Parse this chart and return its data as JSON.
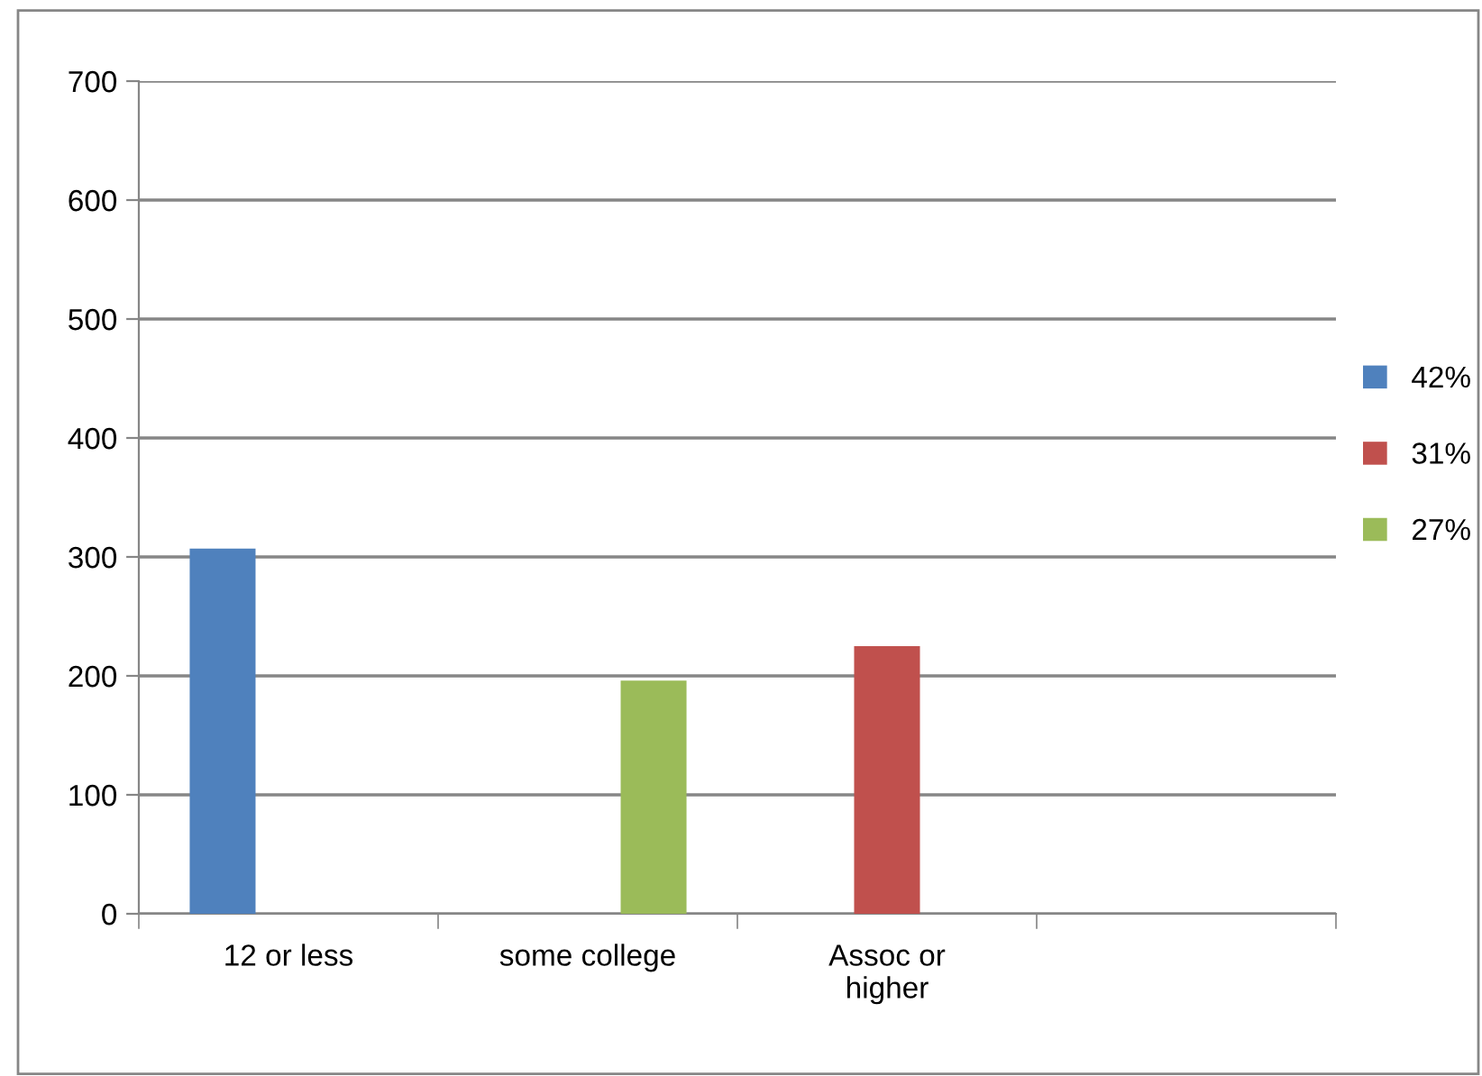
{
  "chart_data": {
    "type": "bar",
    "categories": [
      "12 or less",
      "some college",
      "Assoc or\nhigher",
      null
    ],
    "series": [
      {
        "name": "42%",
        "color": "#4f81bd",
        "values": [
          307,
          null,
          null,
          null
        ]
      },
      {
        "name": "31%",
        "color": "#c0504d",
        "values": [
          null,
          null,
          225,
          null
        ]
      },
      {
        "name": "27%",
        "color": "#9bbb59",
        "values": [
          null,
          196,
          null,
          null
        ]
      }
    ],
    "ylim": [
      0,
      700
    ],
    "yticks": [
      0,
      100,
      200,
      300,
      400,
      500,
      600,
      700
    ],
    "grid": "y",
    "legend": "right"
  }
}
